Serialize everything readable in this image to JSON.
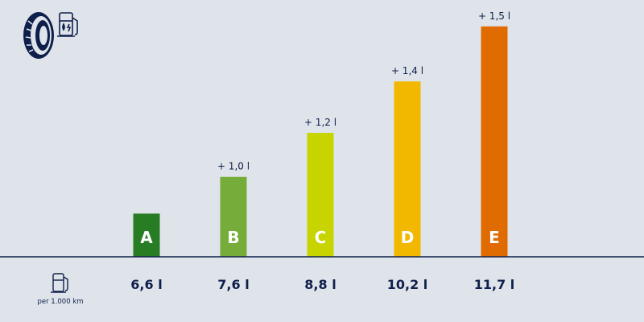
{
  "icons": {
    "header": [
      "tire-icon",
      "fuel-pump-icon"
    ],
    "unit": "fuel-pump-icon"
  },
  "unit_caption": "per 1.000 km",
  "chart_data": {
    "type": "bar",
    "categories": [
      "A",
      "B",
      "C",
      "D",
      "E"
    ],
    "values": [
      6.6,
      7.6,
      8.8,
      10.2,
      11.7
    ],
    "value_labels": [
      "6,6 l",
      "7,6 l",
      "8,8 l",
      "10,2 l",
      "11,7 l"
    ],
    "increment_labels": [
      "",
      "+ 1,0 l",
      "+ 1,2 l",
      "+ 1,4 l",
      "+ 1,5 l"
    ],
    "colors": [
      "#267d24",
      "#76ad3a",
      "#c8d400",
      "#f2b800",
      "#e06b00"
    ],
    "baseline_color": "#0f1f4b"
  }
}
